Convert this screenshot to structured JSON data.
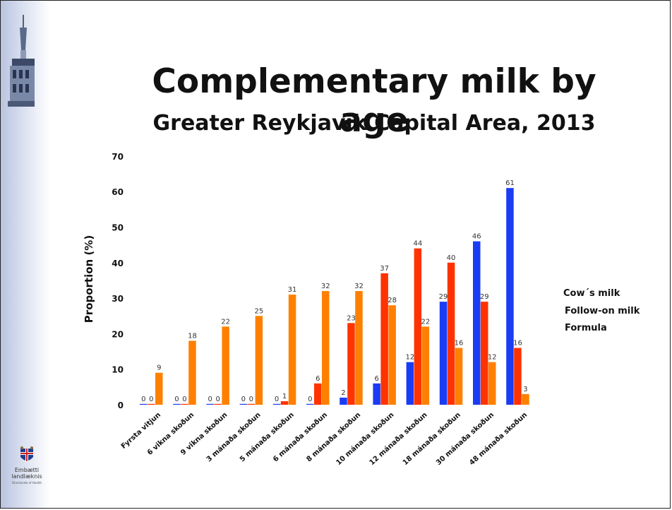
{
  "slide": {
    "title": "Complementary milk by age",
    "subtitle": "Greater Reykjavík Capital Area, 2013",
    "logo_text": "Embætti landlæknis",
    "logo_subtext": "Directorate of Health"
  },
  "chart_data": {
    "type": "bar",
    "title": "Complementary milk by age",
    "subtitle": "Greater Reykjavík Capital Area, 2013",
    "xlabel": "",
    "ylabel": "Proportion (%)",
    "ylim": [
      0,
      70
    ],
    "yticks": [
      0,
      10,
      20,
      30,
      40,
      50,
      60,
      70
    ],
    "grid": false,
    "legend_position": "right",
    "categories": [
      "Fyrsta vitjun",
      "6 vikna skoðun",
      "9 vikna skoðun",
      "3 mánaða skoðun",
      "5 mánaða skoðun",
      "6 mánaða skoðun",
      "8 mánaða skoðun",
      "10 mánaða skoðun",
      "12 mánaða skoðun",
      "18 mánaða skoðun",
      "30 mánaða skoðun",
      "48 mánaða skoðun"
    ],
    "series": [
      {
        "name": "Cow´s milk",
        "color": "#1a3cf5",
        "values": [
          0,
          0,
          0,
          0,
          0,
          0,
          2,
          6,
          12,
          29,
          46,
          61
        ],
        "labels": [
          "0",
          "0",
          "0",
          "0",
          "0",
          "0",
          "2",
          "6",
          "12",
          "29",
          "46",
          "61"
        ]
      },
      {
        "name": "Follow-on milk",
        "color": "#ff3300",
        "values": [
          0,
          0,
          0,
          0,
          1,
          6,
          23,
          37,
          44,
          40,
          29,
          16
        ],
        "labels": [
          "0",
          "0",
          "0",
          "0",
          "1",
          "6",
          "23",
          "37",
          "44",
          "40",
          "29",
          "16"
        ]
      },
      {
        "name": "Formula",
        "color": "#ff8000",
        "values": [
          9,
          18,
          22,
          25,
          31,
          32,
          32,
          28,
          22,
          16,
          12,
          3
        ],
        "labels": [
          "9",
          "18",
          "22",
          "25",
          "31",
          "32",
          "32",
          "28",
          "22",
          "16",
          "12",
          "3"
        ]
      }
    ]
  }
}
